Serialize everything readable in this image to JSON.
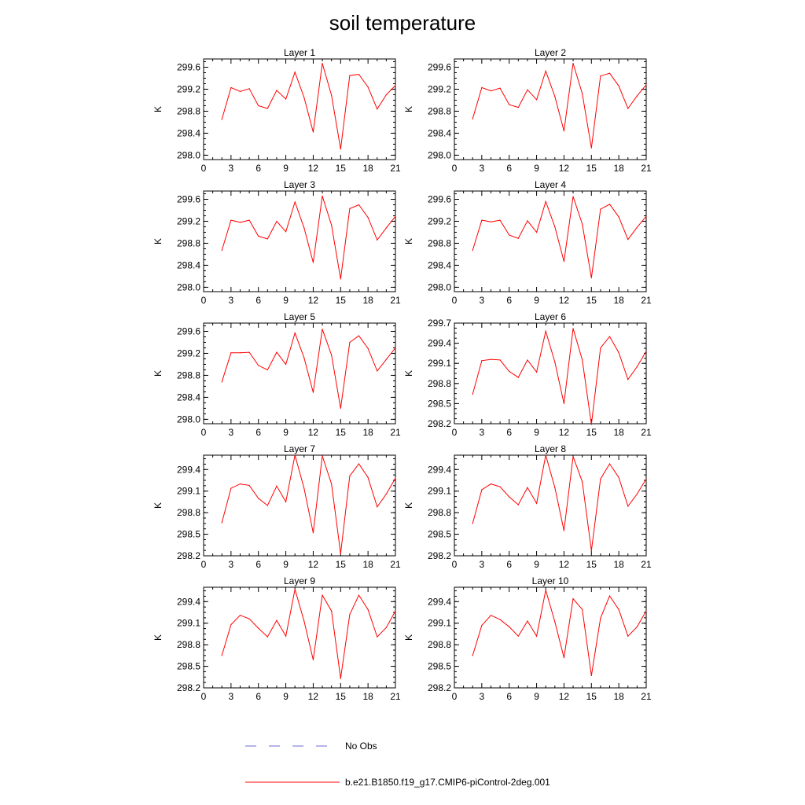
{
  "title": "soil temperature",
  "legend": {
    "entries": [
      {
        "label": "No Obs",
        "color": "#6b6bd6",
        "style": "dashed"
      },
      {
        "label": "b.e21.B1850.f19_g17.CMIP6-piControl-2deg.001",
        "color": "#ff0000",
        "style": "solid"
      }
    ]
  },
  "chart_data": [
    {
      "type": "line",
      "title": "Layer 1",
      "ylabel": "K",
      "xlim": [
        0,
        21
      ],
      "ylim": [
        297.92,
        299.75
      ],
      "xticks": [
        "0",
        "3",
        "6",
        "9",
        "12",
        "15",
        "18",
        "21"
      ],
      "yticks": [
        "298.0",
        "298.4",
        "298.8",
        "299.2",
        "299.6"
      ],
      "x": [
        2,
        3,
        4,
        5,
        6,
        7,
        8,
        9,
        10,
        11,
        12,
        13,
        14,
        15,
        16,
        17,
        18,
        19,
        20,
        21
      ],
      "series": [
        {
          "name": "b.e21.B1850.f19_g17.CMIP6-piControl-2deg.001",
          "color": "#ff0000",
          "values": [
            298.65,
            299.23,
            299.16,
            299.21,
            298.9,
            298.85,
            299.18,
            299.02,
            299.51,
            299.05,
            298.42,
            299.67,
            299.09,
            298.11,
            299.45,
            299.47,
            299.24,
            298.84,
            299.1,
            299.27
          ]
        }
      ]
    },
    {
      "type": "line",
      "title": "Layer 2",
      "ylabel": "K",
      "xlim": [
        0,
        21
      ],
      "ylim": [
        297.92,
        299.75
      ],
      "xticks": [
        "0",
        "3",
        "6",
        "9",
        "12",
        "15",
        "18",
        "21"
      ],
      "yticks": [
        "298.0",
        "298.4",
        "298.8",
        "299.2",
        "299.6"
      ],
      "x": [
        2,
        3,
        4,
        5,
        6,
        7,
        8,
        9,
        10,
        11,
        12,
        13,
        14,
        15,
        16,
        17,
        18,
        19,
        20,
        21
      ],
      "series": [
        {
          "name": "b.e21.B1850.f19_g17.CMIP6-piControl-2deg.001",
          "color": "#ff0000",
          "values": [
            298.66,
            299.23,
            299.17,
            299.22,
            298.92,
            298.87,
            299.19,
            299.01,
            299.53,
            299.07,
            298.44,
            299.67,
            299.12,
            298.13,
            299.44,
            299.49,
            299.26,
            298.85,
            299.08,
            299.28
          ]
        }
      ]
    },
    {
      "type": "line",
      "title": "Layer 3",
      "ylabel": "K",
      "xlim": [
        0,
        21
      ],
      "ylim": [
        297.92,
        299.75
      ],
      "xticks": [
        "0",
        "3",
        "6",
        "9",
        "12",
        "15",
        "18",
        "21"
      ],
      "yticks": [
        "298.0",
        "298.4",
        "298.8",
        "299.2",
        "299.6"
      ],
      "x": [
        2,
        3,
        4,
        5,
        6,
        7,
        8,
        9,
        10,
        11,
        12,
        13,
        14,
        15,
        16,
        17,
        18,
        19,
        20,
        21
      ],
      "series": [
        {
          "name": "b.e21.B1850.f19_g17.CMIP6-piControl-2deg.001",
          "color": "#ff0000",
          "values": [
            298.67,
            299.22,
            299.18,
            299.22,
            298.93,
            298.88,
            299.2,
            299.01,
            299.55,
            299.08,
            298.45,
            299.66,
            299.13,
            298.15,
            299.43,
            299.5,
            299.27,
            298.86,
            299.08,
            299.29
          ]
        }
      ]
    },
    {
      "type": "line",
      "title": "Layer 4",
      "ylabel": "K",
      "xlim": [
        0,
        21
      ],
      "ylim": [
        297.92,
        299.75
      ],
      "xticks": [
        "0",
        "3",
        "6",
        "9",
        "12",
        "15",
        "18",
        "21"
      ],
      "yticks": [
        "298.0",
        "298.4",
        "298.8",
        "299.2",
        "299.6"
      ],
      "x": [
        2,
        3,
        4,
        5,
        6,
        7,
        8,
        9,
        10,
        11,
        12,
        13,
        14,
        15,
        16,
        17,
        18,
        19,
        20,
        21
      ],
      "series": [
        {
          "name": "b.e21.B1850.f19_g17.CMIP6-piControl-2deg.001",
          "color": "#ff0000",
          "values": [
            298.67,
            299.22,
            299.19,
            299.22,
            298.95,
            298.89,
            299.21,
            299.0,
            299.56,
            299.1,
            298.47,
            299.65,
            299.15,
            298.17,
            299.42,
            299.51,
            299.28,
            298.87,
            299.09,
            299.29
          ]
        }
      ]
    },
    {
      "type": "line",
      "title": "Layer 5",
      "ylabel": "K",
      "xlim": [
        0,
        21
      ],
      "ylim": [
        297.92,
        299.75
      ],
      "xticks": [
        "0",
        "3",
        "6",
        "9",
        "12",
        "15",
        "18",
        "21"
      ],
      "yticks": [
        "298.0",
        "298.4",
        "298.8",
        "299.2",
        "299.6"
      ],
      "x": [
        2,
        3,
        4,
        5,
        6,
        7,
        8,
        9,
        10,
        11,
        12,
        13,
        14,
        15,
        16,
        17,
        18,
        19,
        20,
        21
      ],
      "series": [
        {
          "name": "b.e21.B1850.f19_g17.CMIP6-piControl-2deg.001",
          "color": "#ff0000",
          "values": [
            298.68,
            299.21,
            299.21,
            299.22,
            298.98,
            298.9,
            299.22,
            299.0,
            299.57,
            299.12,
            298.49,
            299.64,
            299.17,
            298.2,
            299.4,
            299.52,
            299.29,
            298.88,
            299.09,
            299.3
          ]
        }
      ]
    },
    {
      "type": "line",
      "title": "Layer 6",
      "ylabel": "K",
      "xlim": [
        0,
        21
      ],
      "ylim": [
        298.2,
        299.7
      ],
      "xticks": [
        "0",
        "3",
        "6",
        "9",
        "12",
        "15",
        "18",
        "21"
      ],
      "yticks": [
        "298.2",
        "298.5",
        "298.8",
        "299.1",
        "299.4",
        "299.7"
      ],
      "x": [
        2,
        3,
        4,
        5,
        6,
        7,
        8,
        9,
        10,
        11,
        12,
        13,
        14,
        15,
        16,
        17,
        18,
        19,
        20,
        21
      ],
      "series": [
        {
          "name": "b.e21.B1850.f19_g17.CMIP6-piControl-2deg.001",
          "color": "#ff0000",
          "values": [
            298.64,
            299.14,
            299.16,
            299.15,
            298.98,
            298.89,
            299.15,
            298.97,
            299.58,
            299.12,
            298.5,
            299.62,
            299.15,
            298.19,
            299.33,
            299.5,
            299.26,
            298.86,
            299.05,
            299.28
          ]
        }
      ]
    },
    {
      "type": "line",
      "title": "Layer 7",
      "ylabel": "K",
      "xlim": [
        0,
        21
      ],
      "ylim": [
        298.2,
        299.6
      ],
      "xticks": [
        "0",
        "3",
        "6",
        "9",
        "12",
        "15",
        "18",
        "21"
      ],
      "yticks": [
        "298.2",
        "298.5",
        "298.8",
        "299.1",
        "299.4"
      ],
      "x": [
        2,
        3,
        4,
        5,
        6,
        7,
        8,
        9,
        10,
        11,
        12,
        13,
        14,
        15,
        16,
        17,
        18,
        19,
        20,
        21
      ],
      "series": [
        {
          "name": "b.e21.B1850.f19_g17.CMIP6-piControl-2deg.001",
          "color": "#ff0000",
          "values": [
            298.66,
            299.14,
            299.2,
            299.18,
            299.0,
            298.9,
            299.17,
            298.95,
            299.6,
            299.14,
            298.52,
            299.59,
            299.2,
            298.23,
            299.31,
            299.48,
            299.29,
            298.88,
            299.06,
            299.28
          ]
        }
      ]
    },
    {
      "type": "line",
      "title": "Layer 8",
      "ylabel": "K",
      "xlim": [
        0,
        21
      ],
      "ylim": [
        298.2,
        299.6
      ],
      "xticks": [
        "0",
        "3",
        "6",
        "9",
        "12",
        "15",
        "18",
        "21"
      ],
      "yticks": [
        "298.2",
        "298.5",
        "298.8",
        "299.1",
        "299.4"
      ],
      "x": [
        2,
        3,
        4,
        5,
        6,
        7,
        8,
        9,
        10,
        11,
        12,
        13,
        14,
        15,
        16,
        17,
        18,
        19,
        20,
        21
      ],
      "series": [
        {
          "name": "b.e21.B1850.f19_g17.CMIP6-piControl-2deg.001",
          "color": "#ff0000",
          "values": [
            298.65,
            299.12,
            299.2,
            299.16,
            299.02,
            298.91,
            299.15,
            298.93,
            299.6,
            299.15,
            298.55,
            299.58,
            299.23,
            298.27,
            299.27,
            299.48,
            299.29,
            298.89,
            299.06,
            299.27
          ]
        }
      ]
    },
    {
      "type": "line",
      "title": "Layer 9",
      "ylabel": "K",
      "xlim": [
        0,
        21
      ],
      "ylim": [
        298.2,
        299.6
      ],
      "xticks": [
        "0",
        "3",
        "6",
        "9",
        "12",
        "15",
        "18",
        "21"
      ],
      "yticks": [
        "298.2",
        "298.5",
        "298.8",
        "299.1",
        "299.4"
      ],
      "x": [
        2,
        3,
        4,
        5,
        6,
        7,
        8,
        9,
        10,
        11,
        12,
        13,
        14,
        15,
        16,
        17,
        18,
        19,
        20,
        21
      ],
      "series": [
        {
          "name": "b.e21.B1850.f19_g17.CMIP6-piControl-2deg.001",
          "color": "#ff0000",
          "values": [
            298.65,
            299.08,
            299.21,
            299.16,
            299.03,
            298.91,
            299.14,
            298.92,
            299.57,
            299.13,
            298.59,
            299.49,
            299.27,
            298.33,
            299.22,
            299.49,
            299.29,
            298.91,
            299.04,
            299.27
          ]
        }
      ]
    },
    {
      "type": "line",
      "title": "Layer 10",
      "ylabel": "K",
      "xlim": [
        0,
        21
      ],
      "ylim": [
        298.2,
        299.6
      ],
      "xticks": [
        "0",
        "3",
        "6",
        "9",
        "12",
        "15",
        "18",
        "21"
      ],
      "yticks": [
        "298.2",
        "298.5",
        "298.8",
        "299.1",
        "299.4"
      ],
      "x": [
        2,
        3,
        4,
        5,
        6,
        7,
        8,
        9,
        10,
        11,
        12,
        13,
        14,
        15,
        16,
        17,
        18,
        19,
        20,
        21
      ],
      "series": [
        {
          "name": "b.e21.B1850.f19_g17.CMIP6-piControl-2deg.001",
          "color": "#ff0000",
          "values": [
            298.65,
            299.07,
            299.21,
            299.15,
            299.05,
            298.92,
            299.13,
            298.92,
            299.56,
            299.12,
            298.62,
            299.44,
            299.29,
            298.37,
            299.17,
            299.48,
            299.29,
            298.92,
            299.05,
            299.27
          ]
        }
      ]
    }
  ]
}
